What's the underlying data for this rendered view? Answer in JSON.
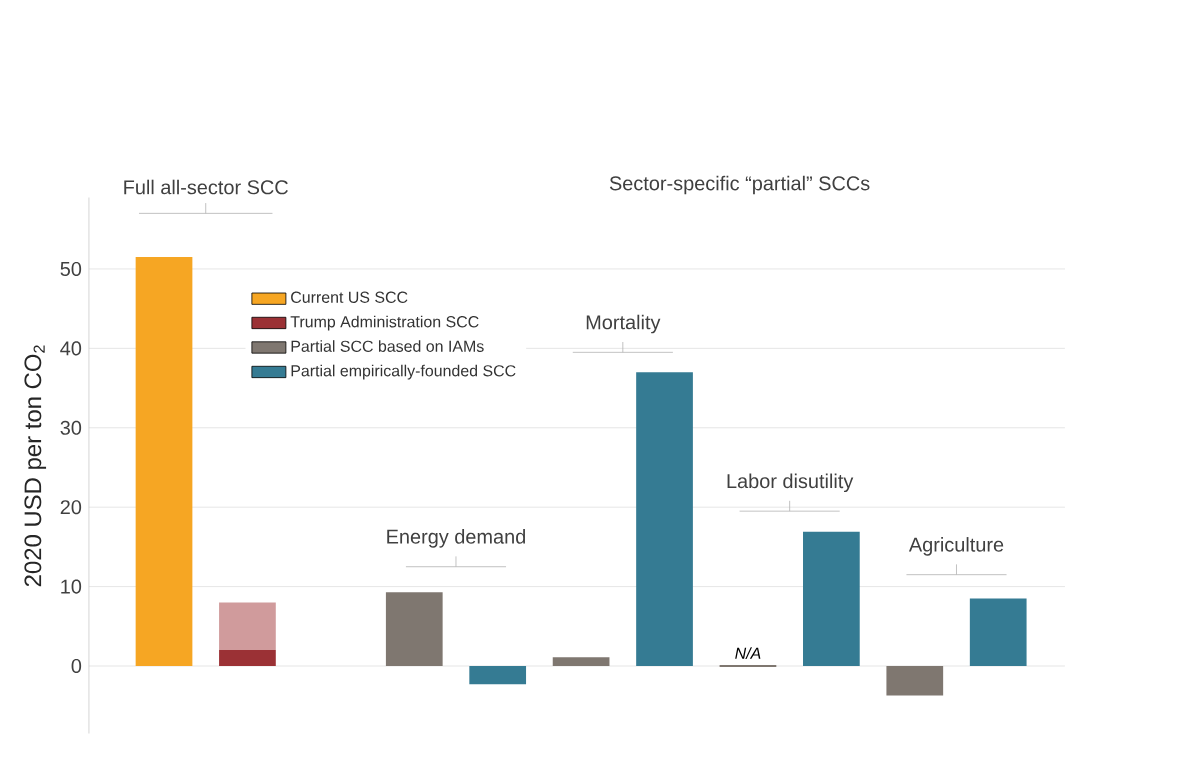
{
  "chart_data": {
    "type": "bar",
    "ylabel": "2020 USD per ton CO$_{2}$",
    "categories": [
      null,
      null,
      null,
      null,
      null,
      null,
      null,
      null,
      null,
      null,
      null
    ],
    "series": [
      {
        "name": "Current US SCC",
        "color": "#f6a623",
        "values": [
          51.5,
          null,
          null,
          null,
          null,
          null,
          null,
          null,
          null,
          null,
          null
        ]
      },
      {
        "name": "Trump Administration SCC",
        "color": "#9b3135",
        "values": [
          null,
          2,
          null,
          null,
          null,
          null,
          null,
          null,
          null,
          null,
          null
        ]
      },
      {
        "color": "#d09b9c",
        "values": [
          null,
          6,
          null,
          null,
          null,
          null,
          null,
          null,
          null,
          null,
          null
        ]
      },
      {
        "name": "Partial SCC based on IAMs",
        "color": "#7f7770",
        "values": [
          null,
          null,
          null,
          9.3,
          null,
          1.1,
          null,
          null,
          null,
          -3.7,
          null
        ],
        "value_labels": [
          null,
          null,
          null,
          null,
          null,
          null,
          null,
          "N/A",
          null,
          null,
          null
        ]
      },
      {
        "name": "Partial empirically-founded SCC",
        "color": "#357b93",
        "values": [
          null,
          null,
          null,
          null,
          -2.3,
          null,
          37,
          null,
          16.9,
          null,
          8.5
        ]
      }
    ],
    "stacked": true,
    "ylim": [
      -8.5,
      59
    ],
    "yticks": [
      0,
      10,
      20,
      30,
      40,
      50
    ],
    "grid": "y",
    "legend": "top",
    "annotations": [
      "Full all-sector SCC",
      "Sector-specific “partial” SCCs",
      "Energy demand",
      "Mortality",
      "Labor disutility",
      "Agriculture"
    ]
  }
}
